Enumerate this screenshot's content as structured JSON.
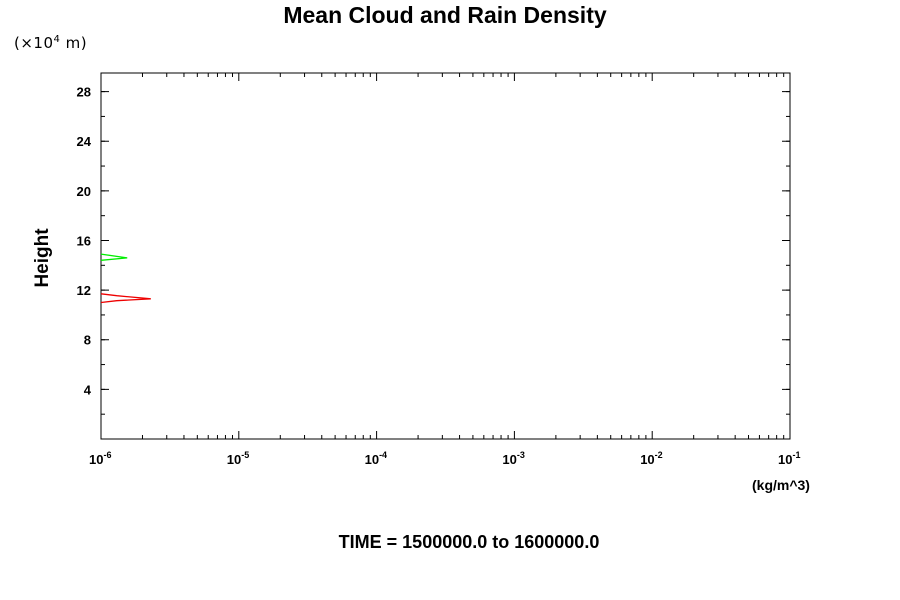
{
  "title": "Mean Cloud and Rain Density",
  "y_unit_prefix": "(×10",
  "y_unit_exp": "4",
  "y_unit_suffix": " m)",
  "footer": "TIME = 1500000.0 to 1600000.0",
  "chart_data": {
    "type": "line",
    "ylabel": "Height",
    "xlabel": "(kg/m^3)",
    "xscale": "log",
    "xlim": [
      1e-06,
      0.1
    ],
    "ylim": [
      0,
      29.5
    ],
    "y_ticks": [
      4,
      8,
      12,
      16,
      20,
      24,
      28
    ],
    "x_ticks": [
      {
        "base": "10",
        "exp": "-6"
      },
      {
        "base": "10",
        "exp": "-5"
      },
      {
        "base": "10",
        "exp": "-4"
      },
      {
        "base": "10",
        "exp": "-3"
      },
      {
        "base": "10",
        "exp": "-2"
      },
      {
        "base": "10",
        "exp": "-1"
      }
    ],
    "grid": false,
    "series": [
      {
        "color": "#00ee00",
        "points": [
          [
            1e-06,
            14.4
          ],
          [
            1.55e-06,
            14.6
          ],
          [
            1e-06,
            14.9
          ]
        ]
      },
      {
        "color": "#ee0000",
        "points": [
          [
            1e-06,
            11.0
          ],
          [
            1.3e-06,
            11.15
          ],
          [
            2.3e-06,
            11.3
          ],
          [
            1.3e-06,
            11.55
          ],
          [
            1e-06,
            11.7
          ]
        ]
      }
    ]
  }
}
